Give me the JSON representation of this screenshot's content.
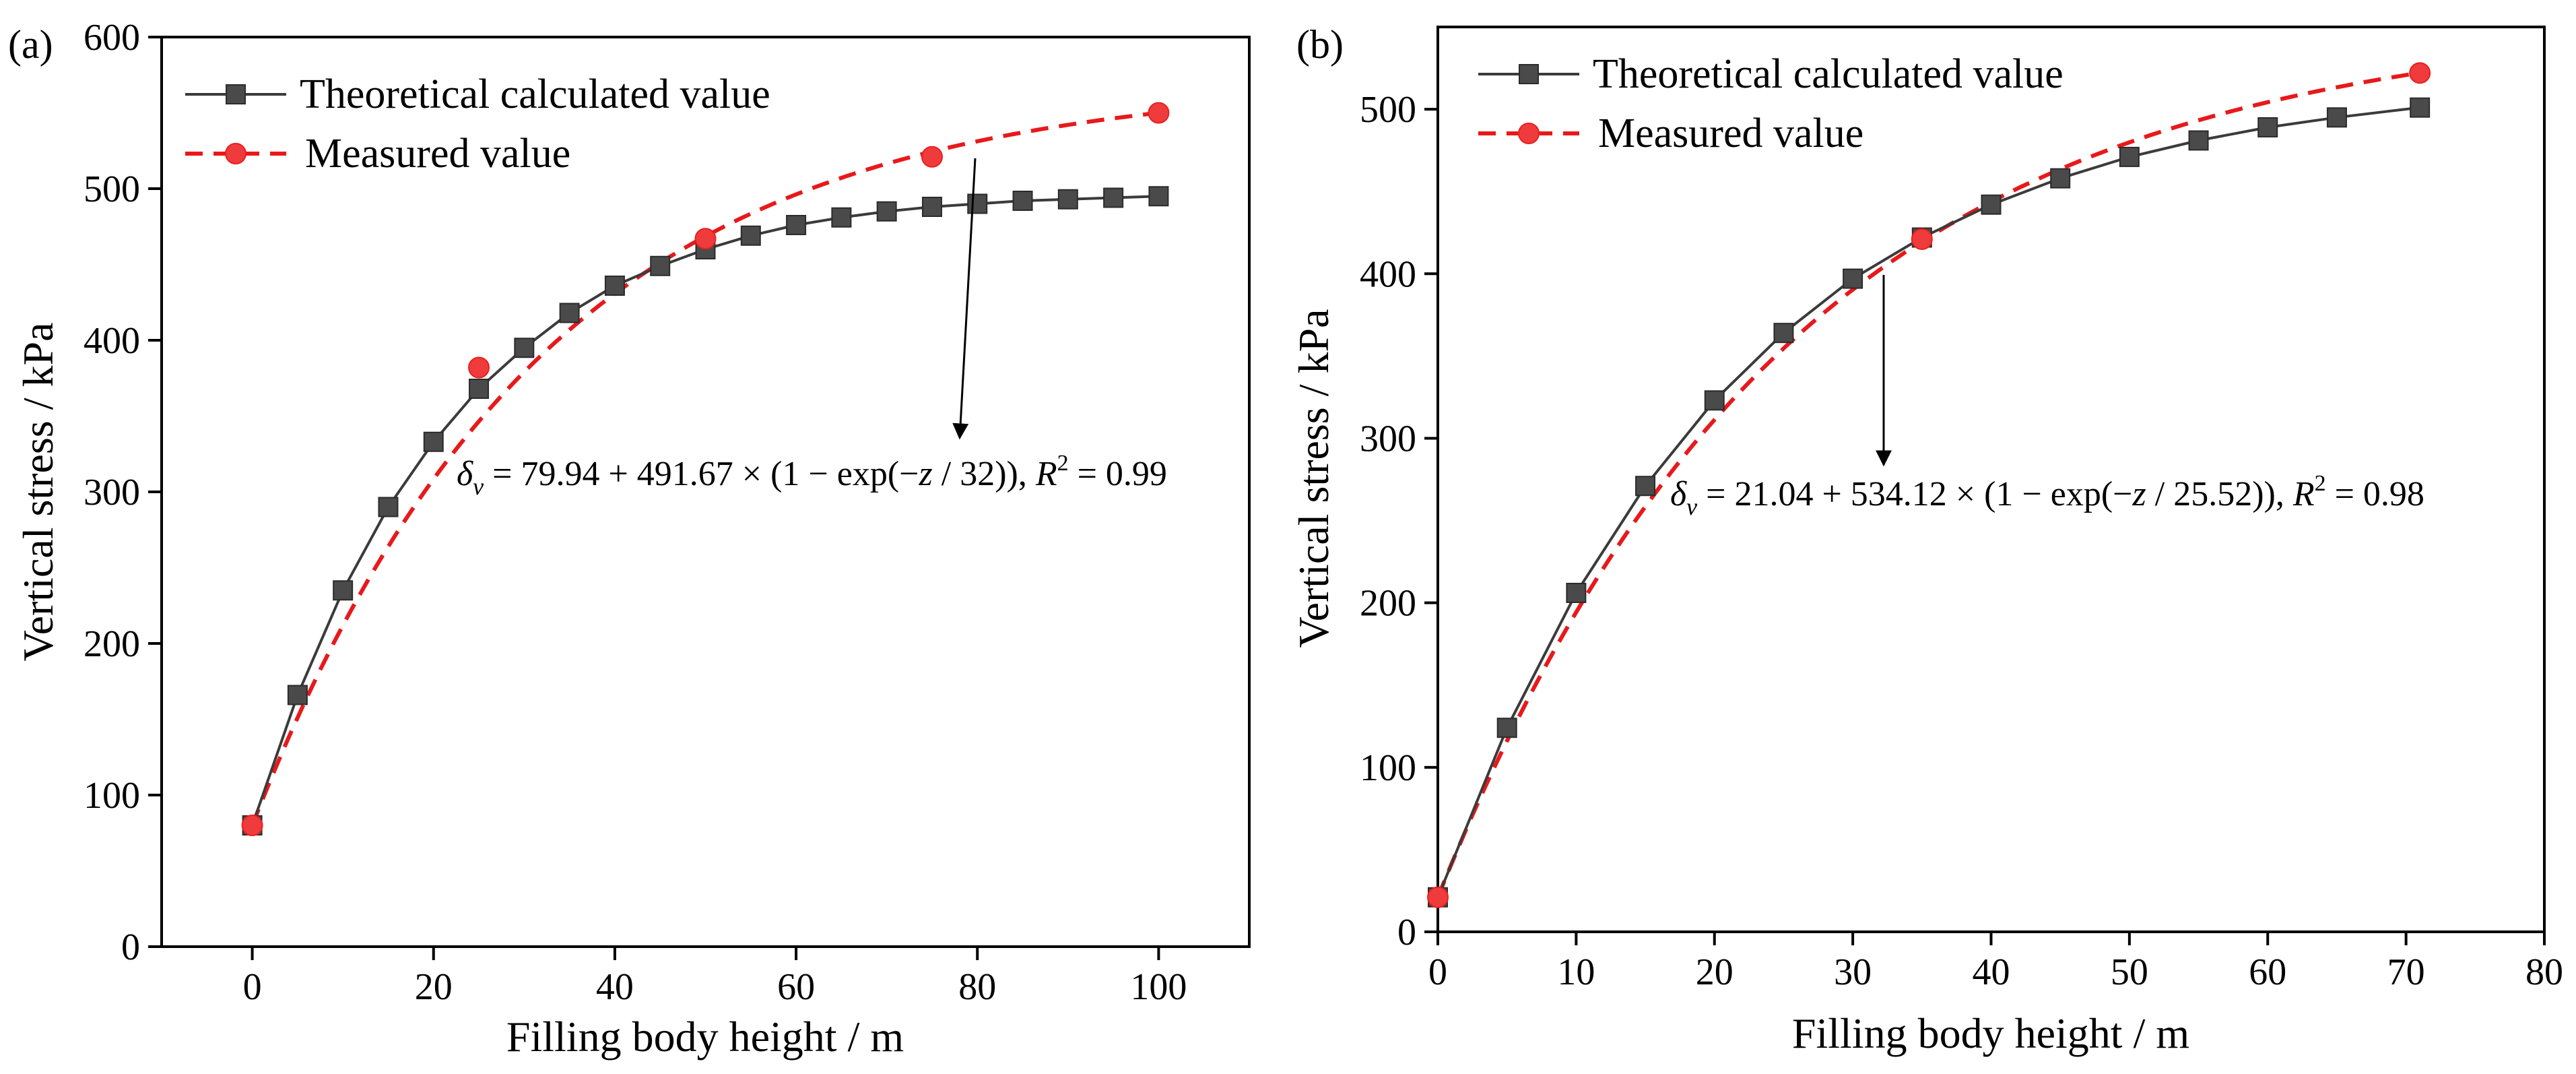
{
  "chart_data": [
    {
      "type": "line",
      "panel_label": "(a)",
      "xlabel": "Filling body height / m",
      "ylabel": "Vertical stress / kPa",
      "xlim": [
        -10,
        110
      ],
      "ylim": [
        0,
        600
      ],
      "x_ticks": [
        0,
        20,
        40,
        60,
        80,
        100
      ],
      "y_ticks": [
        0,
        100,
        200,
        300,
        400,
        500,
        600
      ],
      "legend_position": "top-left",
      "fit": {
        "a": 79.94,
        "b": 491.67,
        "c": 32
      },
      "equation": {
        "lhs": "δ",
        "lhs_sub": "v",
        "rhs": " = 79.94 + 491.67 × (1 − exp(−",
        "var": "z",
        "rhs2": " / 32)), ",
        "r": "R",
        "r_sup": "2",
        "r_val": " = 0.99"
      },
      "series": [
        {
          "name": "Theoretical calculated value",
          "color": "#4a4a4a",
          "marker": "square",
          "x": [
            0,
            5,
            10,
            15,
            20,
            25,
            30,
            35,
            40,
            45,
            50,
            55,
            60,
            65,
            70,
            75,
            80,
            85,
            90,
            95,
            100
          ],
          "y": [
            80,
            166,
            235,
            290,
            333,
            368,
            395,
            418,
            436,
            449,
            460,
            469,
            476,
            481,
            485,
            488,
            490,
            492,
            493,
            494,
            495
          ]
        },
        {
          "name": "Measured value",
          "color": "#e8191b",
          "marker": "circle",
          "x": [
            0,
            25,
            50,
            75,
            100
          ],
          "y": [
            80,
            382,
            467,
            521,
            550
          ]
        }
      ]
    },
    {
      "type": "line",
      "panel_label": "(b)",
      "xlabel": "Filling body height / m",
      "ylabel": "Vertical stress / kPa",
      "xlim": [
        0,
        80
      ],
      "ylim": [
        0,
        550
      ],
      "x_ticks": [
        0,
        10,
        20,
        30,
        40,
        50,
        60,
        70,
        80
      ],
      "y_ticks": [
        0,
        100,
        200,
        300,
        400,
        500
      ],
      "legend_position": "top-left",
      "fit": {
        "a": 21.04,
        "b": 534.12,
        "c": 25.52
      },
      "equation": {
        "lhs": "δ",
        "lhs_sub": "v",
        "rhs": " = 21.04 + 534.12 × (1 − exp(−",
        "var": "z",
        "rhs2": " / 25.52)), ",
        "r": "R",
        "r_sup": "2",
        "r_val": " = 0.98"
      },
      "series": [
        {
          "name": "Theoretical calculated value",
          "color": "#4a4a4a",
          "marker": "square",
          "x": [
            0,
            5,
            10,
            15,
            20,
            25,
            30,
            35,
            40,
            45,
            50,
            55,
            60,
            65,
            71
          ],
          "y": [
            21,
            124,
            206,
            271,
            323,
            364,
            397,
            422,
            442,
            458,
            471,
            481,
            489,
            495,
            501
          ]
        },
        {
          "name": "Measured value",
          "color": "#e8191b",
          "marker": "circle",
          "x": [
            0,
            35,
            71
          ],
          "y": [
            21,
            421,
            522
          ]
        }
      ]
    }
  ]
}
